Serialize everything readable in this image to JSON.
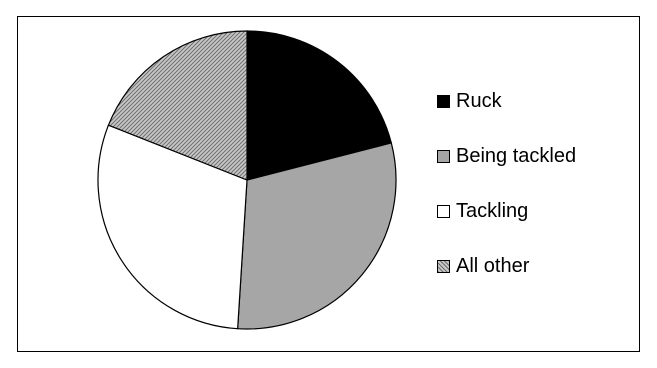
{
  "chart_data": {
    "type": "pie",
    "categories": [
      "Ruck",
      "Being tackled",
      "Tackling",
      "All other"
    ],
    "values": [
      21,
      30,
      30,
      19
    ],
    "unit": "percent (estimated)",
    "title": "",
    "legend_position": "right",
    "slice_order": "clockwise from 12 o'clock",
    "series": [
      {
        "values": [
          21,
          30,
          30,
          19
        ]
      }
    ],
    "fills": {
      "Ruck": "#000000",
      "Being tackled": "#a6a6a6",
      "Tackling": "#ffffff",
      "All other": "hatched-gray"
    }
  },
  "legend": {
    "items": [
      {
        "label": "Ruck"
      },
      {
        "label": "Being tackled"
      },
      {
        "label": "Tackling"
      },
      {
        "label": "All other"
      }
    ]
  }
}
